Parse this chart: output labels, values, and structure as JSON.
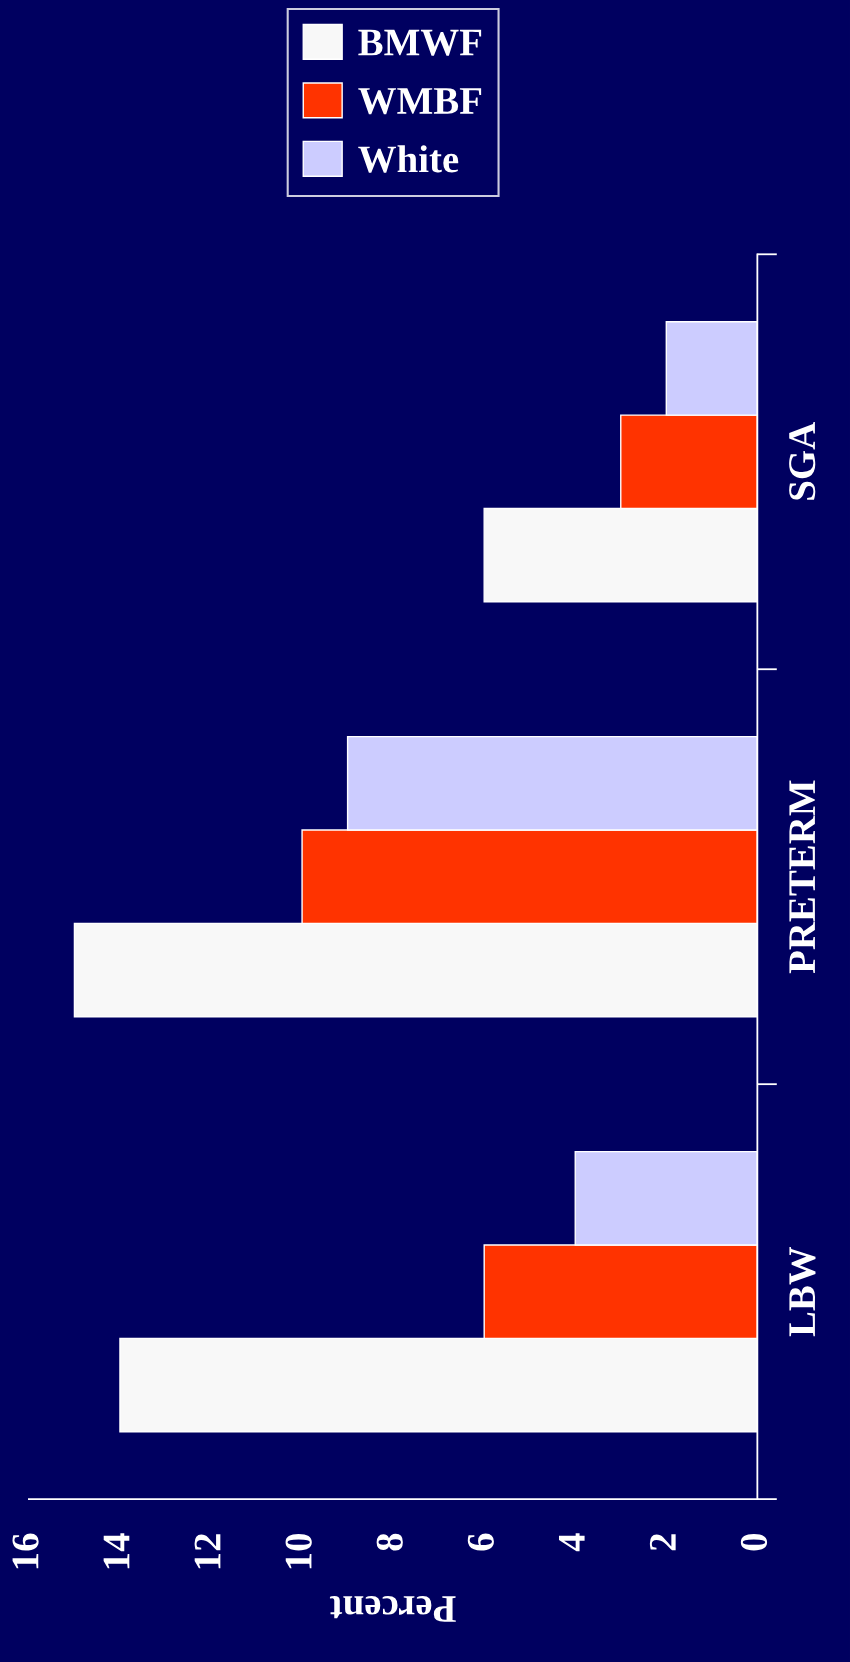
{
  "chart_data": {
    "type": "bar",
    "orientation": "horizontal",
    "xlabel": "Percent",
    "categories": [
      "SGA",
      "PRETERM",
      "LBW"
    ],
    "series": [
      {
        "name": "BMWF",
        "color": "#f8f8f8",
        "values": [
          6,
          15,
          14
        ]
      },
      {
        "name": "WMBF",
        "color": "#ff3300",
        "values": [
          3,
          10,
          6
        ]
      },
      {
        "name": "White",
        "color": "#ccccff",
        "values": [
          2,
          9,
          4
        ]
      }
    ],
    "xlim": [
      16,
      0
    ],
    "xticks": [
      16,
      14,
      12,
      10,
      8,
      6,
      4,
      2,
      0
    ],
    "grid": false,
    "legend": "top"
  }
}
